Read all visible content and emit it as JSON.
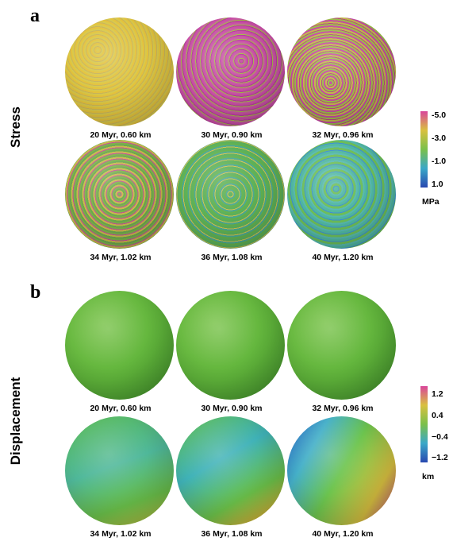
{
  "panels": [
    {
      "letter": "a",
      "row_label": "Stress",
      "spheres": [
        {
          "caption": "20 Myr, 0.60 km",
          "texture": "stress-yellow"
        },
        {
          "caption": "30 Myr, 0.90 km",
          "texture": "stress-magenta"
        },
        {
          "caption": "32 Myr, 0.96 km",
          "texture": "stress-magenta-green"
        },
        {
          "caption": "34 Myr, 1.02 km",
          "texture": "stress-mixed"
        },
        {
          "caption": "36 Myr, 1.08 km",
          "texture": "stress-green"
        },
        {
          "caption": "40 Myr, 1.20 km",
          "texture": "stress-cyan"
        }
      ],
      "colorbar": {
        "ticks": [
          "-5.0",
          "-3.0",
          "-1.0",
          "1.0"
        ],
        "unit": "MPa",
        "colors": [
          "#d9459a",
          "#d9c040",
          "#7ac04a",
          "#3aa8c8",
          "#2848b0"
        ]
      }
    },
    {
      "letter": "b",
      "row_label": "Displacement",
      "spheres": [
        {
          "caption": "20 Myr, 0.60 km",
          "texture": "disp-green"
        },
        {
          "caption": "30 Myr, 0.90 km",
          "texture": "disp-green"
        },
        {
          "caption": "32 Myr, 0.96 km",
          "texture": "disp-green"
        },
        {
          "caption": "34 Myr, 1.02 km",
          "texture": "disp-mixed-1"
        },
        {
          "caption": "36 Myr, 1.08 km",
          "texture": "disp-mixed-2"
        },
        {
          "caption": "40 Myr, 1.20 km",
          "texture": "disp-mixed-3"
        }
      ],
      "colorbar": {
        "ticks": [
          "1.2",
          "0.4",
          "−0.4",
          "−1.2"
        ],
        "unit": "km",
        "colors": [
          "#d9459a",
          "#d9c040",
          "#7ac04a",
          "#3aa8c8",
          "#2848b0"
        ]
      }
    }
  ]
}
